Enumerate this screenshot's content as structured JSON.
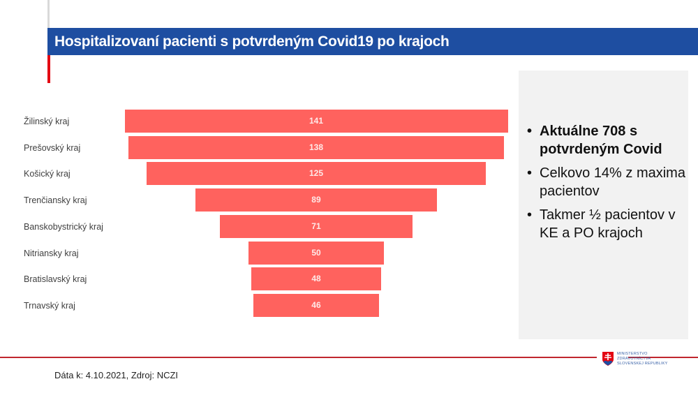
{
  "header": {
    "title": "Hospitalizovaní pacienti s potvrdeným Covid19 po krajoch"
  },
  "chart_data": {
    "type": "bar",
    "subtype": "funnel",
    "title": "Hospitalizovaní pacienti s potvrdeným Covid19 po krajoch",
    "categories": [
      "Žilinský kraj",
      "Prešovský kraj",
      "Košický kraj",
      "Trenčiansky kraj",
      "Banskobystrický kraj",
      "Nitriansky kraj",
      "Bratislavský kraj",
      "Trnavský kraj"
    ],
    "values": [
      141,
      138,
      125,
      89,
      71,
      50,
      48,
      46
    ],
    "labels": [
      "141",
      "138",
      "125",
      "89",
      "71",
      "50",
      "48",
      "46"
    ],
    "bar_color": "#ff625e",
    "xlabel": "",
    "ylabel": "",
    "grid": false,
    "legend": null
  },
  "sidebar": {
    "bullets": [
      {
        "text": "Aktuálne 708 s potvrdeným Covid",
        "bold": true
      },
      {
        "text": "Celkovo 14% z maxima pacientov",
        "bold": false
      },
      {
        "text": "Takmer ½ pacientov v KE a PO krajoch",
        "bold": false
      }
    ],
    "bullet_char": "•"
  },
  "footer": {
    "source": "Dáta k: 4.10.2021, Zdroj: NCZI",
    "logo_lines": [
      "MINISTERSTVO",
      "ZDRAVOTNÍCTVA",
      "SLOVENSKEJ REPUBLIKY"
    ]
  },
  "colors": {
    "title_bar": "#1e4ea1",
    "accent_red": "#e30613",
    "bar": "#ff625e",
    "side_box": "#f2f2f2"
  }
}
